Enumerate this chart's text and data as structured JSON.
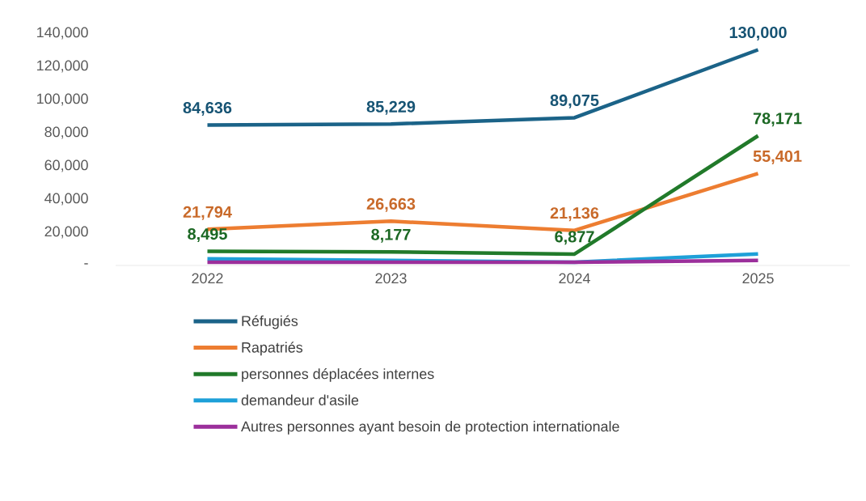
{
  "chart_data": {
    "type": "line",
    "categories": [
      "2022",
      "2023",
      "2024",
      "2025"
    ],
    "series": [
      {
        "name": "Réfugiés",
        "color": "#1b6388",
        "values": [
          84636,
          85229,
          89075,
          130000
        ],
        "value_labels": [
          "84,636",
          "85,229",
          "89,075",
          "130,000"
        ]
      },
      {
        "name": "Rapatriés",
        "color": "#ed7d31",
        "values": [
          21794,
          26663,
          21136,
          55401
        ],
        "value_labels": [
          "21,794",
          "26,663",
          "21,136",
          "55,401"
        ]
      },
      {
        "name": "personnes déplacées internes",
        "color": "#217a2a",
        "values": [
          8495,
          8177,
          6877,
          78171
        ],
        "value_labels": [
          "8,495",
          "8,177",
          "6,877",
          "78,171"
        ]
      },
      {
        "name": "demandeur d'asile",
        "color": "#1ea0d8",
        "values": [
          4000,
          3000,
          2000,
          7000
        ]
      },
      {
        "name": "Autres personnes ayant besoin de protection internationale",
        "color": "#9b2f9b",
        "values": [
          2000,
          2000,
          2000,
          3000
        ]
      }
    ],
    "ylim": [
      0,
      140000
    ],
    "yticks": [
      {
        "value": 0,
        "label": "-"
      },
      {
        "value": 20000,
        "label": "20,000"
      },
      {
        "value": 40000,
        "label": "40,000"
      },
      {
        "value": 60000,
        "label": "60,000"
      },
      {
        "value": 80000,
        "label": "80,000"
      },
      {
        "value": 100000,
        "label": "100,000"
      },
      {
        "value": 120000,
        "label": "120,000"
      },
      {
        "value": 140000,
        "label": "140,000"
      }
    ],
    "legend": "bottom",
    "grid": false,
    "marker": "none",
    "line_style": "solid"
  }
}
